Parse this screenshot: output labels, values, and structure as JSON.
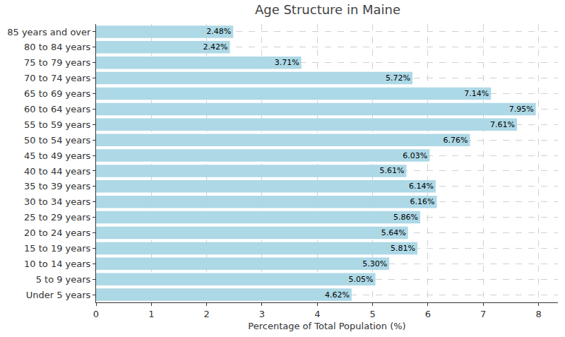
{
  "chart_data": {
    "type": "bar",
    "orientation": "horizontal",
    "title": "Age Structure in Maine",
    "x_label": "Percentage of Total Population (%)",
    "categories": [
      "Under 5 years",
      "5 to 9 years",
      "10 to 14 years",
      "15 to 19 years",
      "20 to 24 years",
      "25 to 29 years",
      "30 to 34 years",
      "35 to 39 years",
      "40 to 44 years",
      "45 to 49 years",
      "50 to 54 years",
      "55 to 59 years",
      "60 to 64 years",
      "65 to 69 years",
      "70 to 74 years",
      "75 to 79 years",
      "80 to 84 years",
      "85 years and over"
    ],
    "values": [
      4.62,
      5.05,
      5.3,
      5.81,
      5.64,
      5.86,
      6.16,
      6.14,
      5.61,
      6.03,
      6.76,
      7.61,
      7.95,
      7.14,
      5.72,
      3.71,
      2.42,
      2.48
    ],
    "value_labels": [
      "4.62%",
      "5.05%",
      "5.30%",
      "5.81%",
      "5.64%",
      "5.86%",
      "6.16%",
      "6.14%",
      "5.61%",
      "6.03%",
      "6.76%",
      "7.61%",
      "7.95%",
      "7.14%",
      "5.72%",
      "3.71%",
      "2.42%",
      "2.48%"
    ],
    "data_labels": true,
    "color": "#add8e6",
    "xlim": [
      0,
      8.35
    ],
    "xticks": [
      0,
      1,
      2,
      3,
      4,
      5,
      6,
      7,
      8
    ],
    "grid": true
  }
}
